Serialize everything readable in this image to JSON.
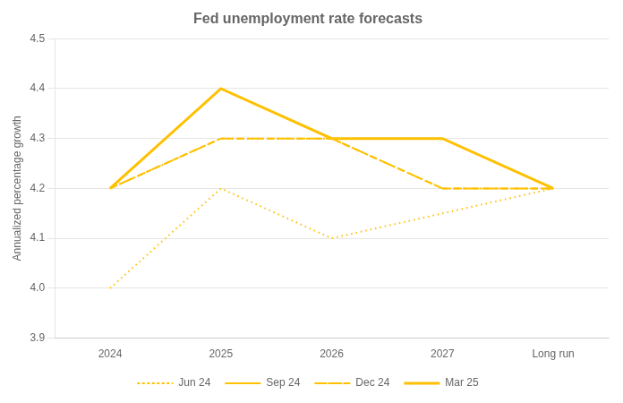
{
  "chart_data": {
    "type": "line",
    "title": "Fed unemployment rate forecasts",
    "y_label": "Annualized percentage growth",
    "categories": [
      "2024",
      "2025",
      "2026",
      "2027",
      "Long run"
    ],
    "series": [
      {
        "name": "Jun 24",
        "color": "#FFC000",
        "line_style": "dotted",
        "values": [
          4.0,
          4.2,
          4.1,
          4.15,
          4.2
        ]
      },
      {
        "name": "Sep 24",
        "color": "#FFC000",
        "line_style": "dashed",
        "values": [
          4.2,
          4.3,
          4.3,
          4.2,
          4.2
        ]
      },
      {
        "name": "Dec 24",
        "color": "#FFC000",
        "line_style": "dashdot",
        "values": [
          4.2,
          4.3,
          4.3,
          4.2,
          4.2
        ]
      },
      {
        "name": "Mar 25",
        "color": "#FFC000",
        "line_style": "solid",
        "values": [
          4.2,
          4.4,
          4.3,
          4.3,
          4.2
        ]
      }
    ],
    "ylim": [
      3.9,
      4.5
    ],
    "yticks": [
      3.9,
      {
        "value": 4.0,
        "label": "4.0"
      },
      4.1,
      4.2,
      4.3,
      4.4,
      4.5
    ],
    "grid": true,
    "legend": "bottom"
  }
}
